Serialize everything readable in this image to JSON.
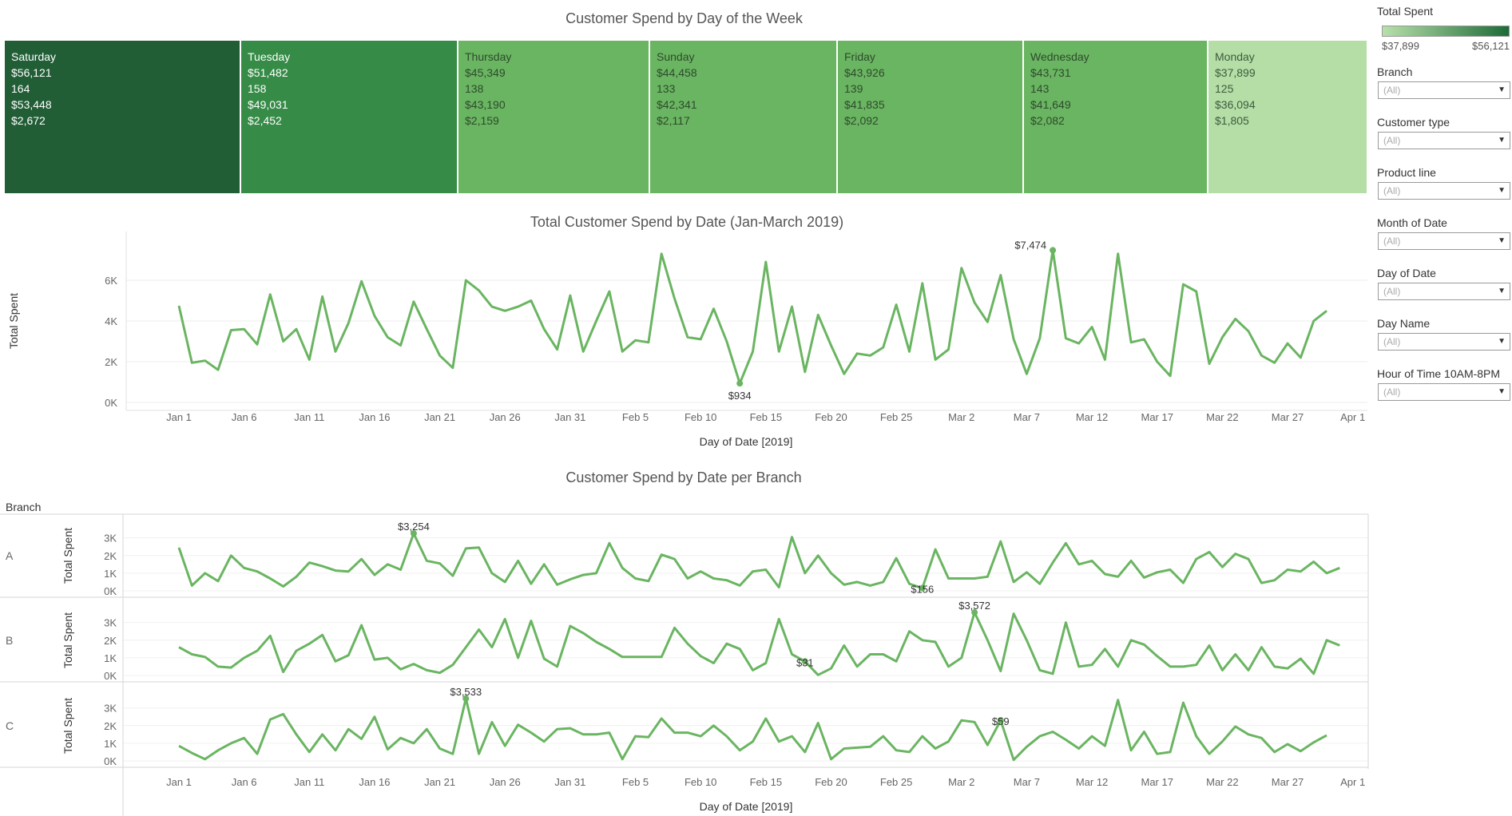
{
  "treemap": {
    "title": "Customer Spend by Day of the Week",
    "tiles": [
      {
        "day": "Saturday",
        "total": "$56,121",
        "count": "164",
        "v3": "$53,448",
        "v4": "$2,672",
        "color": "#215e36",
        "text": "#ffffff"
      },
      {
        "day": "Tuesday",
        "total": "$51,482",
        "count": "158",
        "v3": "$49,031",
        "v4": "$2,452",
        "color": "#368b47",
        "text": "#ffffff"
      },
      {
        "day": "Thursday",
        "total": "$45,349",
        "count": "138",
        "v3": "$43,190",
        "v4": "$2,159",
        "color": "#6ab561",
        "text": "#2d4a2d"
      },
      {
        "day": "Sunday",
        "total": "$44,458",
        "count": "133",
        "v3": "$42,341",
        "v4": "$2,117",
        "color": "#6ab561",
        "text": "#2d4a2d"
      },
      {
        "day": "Friday",
        "total": "$43,926",
        "count": "139",
        "v3": "$41,835",
        "v4": "$2,092",
        "color": "#6ab561",
        "text": "#2d4a2d"
      },
      {
        "day": "Wednesday",
        "total": "$43,731",
        "count": "143",
        "v3": "$41,649",
        "v4": "$2,082",
        "color": "#6ab561",
        "text": "#2d4a2d"
      },
      {
        "day": "Monday",
        "total": "$37,899",
        "count": "125",
        "v3": "$36,094",
        "v4": "$1,805",
        "color": "#b4dea6",
        "text": "#3d5a3d"
      }
    ]
  },
  "legend": {
    "title": "Total Spent",
    "min": "$37,899",
    "max": "$56,121"
  },
  "filters": [
    {
      "label": "Branch",
      "value": "(All)"
    },
    {
      "label": "Customer type",
      "value": "(All)"
    },
    {
      "label": "Product line",
      "value": "(All)"
    },
    {
      "label": "Month of Date",
      "value": "(All)"
    },
    {
      "label": "Day of Date",
      "value": "(All)"
    },
    {
      "label": "Day Name",
      "value": "(All)"
    },
    {
      "label": "Hour of Time 10AM-8PM",
      "value": "(All)"
    }
  ],
  "line_chart": {
    "title": "Total Customer Spend by Date (Jan-March 2019)",
    "ylabel": "Total Spent",
    "xlabel": "Day of Date [2019]",
    "line_color": "#6ab561"
  },
  "branch_chart": {
    "title": "Customer Spend by Date per Branch",
    "facet_header": "Branch",
    "ylabel": "Total Spent",
    "xlabel": "Day of Date [2019]"
  },
  "chart_data": [
    {
      "type": "line",
      "title": "Total Customer Spend by Date (Jan-March 2019)",
      "xlabel": "Day of Date [2019]",
      "ylabel": "Total Spent",
      "x_ticks": [
        "Jan 1",
        "Jan 6",
        "Jan 11",
        "Jan 16",
        "Jan 21",
        "Jan 26",
        "Jan 31",
        "Feb 5",
        "Feb 10",
        "Feb 15",
        "Feb 20",
        "Feb 25",
        "Mar 2",
        "Mar 7",
        "Mar 12",
        "Mar 17",
        "Mar 22",
        "Mar 27",
        "Apr 1"
      ],
      "y_ticks": [
        "0K",
        "2K",
        "4K",
        "6K"
      ],
      "ylim": [
        0,
        8000
      ],
      "annotations": [
        {
          "label": "$7,474",
          "day": 67
        },
        {
          "label": "$934",
          "day": 43
        }
      ],
      "values": [
        4750,
        1950,
        2050,
        1600,
        3550,
        3600,
        2850,
        5300,
        3000,
        3600,
        2100,
        5200,
        2500,
        3900,
        5950,
        4250,
        3200,
        2800,
        4950,
        3600,
        2300,
        1700,
        6000,
        5500,
        4700,
        4500,
        4700,
        5000,
        3600,
        2600,
        5250,
        2500,
        4000,
        5450,
        2500,
        3050,
        2950,
        7300,
        5100,
        3200,
        3100,
        4600,
        3000,
        934,
        2500,
        6900,
        2500,
        4700,
        1500,
        4300,
        2800,
        1400,
        2400,
        2300,
        2700,
        4800,
        2500,
        5850,
        2100,
        2600,
        6600,
        4900,
        3950,
        6250,
        3100,
        1400,
        3150,
        7474,
        3150,
        2900,
        3700,
        2100,
        7300,
        2950,
        3100,
        2000,
        1300,
        5800,
        5450,
        1900,
        3200,
        4100,
        3500,
        2300,
        1950,
        2900,
        2200,
        4000,
        4500
      ]
    },
    {
      "type": "line",
      "title": "Customer Spend by Date per Branch",
      "xlabel": "Day of Date [2019]",
      "ylabel": "Total Spent",
      "x_ticks": [
        "Jan 1",
        "Jan 6",
        "Jan 11",
        "Jan 16",
        "Jan 21",
        "Jan 26",
        "Jan 31",
        "Feb 5",
        "Feb 10",
        "Feb 15",
        "Feb 20",
        "Feb 25",
        "Mar 2",
        "Mar 7",
        "Mar 12",
        "Mar 17",
        "Mar 22",
        "Mar 27",
        "Apr 1"
      ],
      "y_ticks": [
        "0K",
        "1K",
        "2K",
        "3K"
      ],
      "ylim": [
        0,
        3800
      ],
      "series": [
        {
          "name": "A",
          "annotations": [
            {
              "label": "$3,254",
              "day": 18
            },
            {
              "label": "$156",
              "day": 57
            }
          ],
          "values": [
            2450,
            300,
            1000,
            550,
            2000,
            1300,
            1100,
            700,
            250,
            800,
            1600,
            1400,
            1150,
            1100,
            1800,
            900,
            1500,
            1200,
            3254,
            1700,
            1550,
            850,
            2400,
            2450,
            1000,
            500,
            1700,
            400,
            1500,
            350,
            650,
            900,
            1000,
            2700,
            1300,
            700,
            550,
            2050,
            1800,
            700,
            1100,
            700,
            600,
            300,
            1100,
            1200,
            200,
            3050,
            1000,
            2000,
            1000,
            350,
            500,
            300,
            500,
            1850,
            400,
            156,
            2350,
            700,
            700,
            700,
            800,
            2800,
            500,
            1050,
            400,
            1600,
            2700,
            1500,
            1700,
            950,
            800,
            1700,
            750,
            1050,
            1200,
            450,
            1800,
            2200,
            1350,
            2100,
            1800,
            450,
            600,
            1200,
            1100,
            1650,
            1000,
            1300
          ]
        },
        {
          "name": "B",
          "annotations": [
            {
              "label": "$3,572",
              "day": 61
            },
            {
              "label": "$31",
              "day": 48
            }
          ],
          "values": [
            1600,
            1200,
            1050,
            500,
            450,
            1000,
            1400,
            2250,
            200,
            1400,
            1800,
            2300,
            800,
            1150,
            2850,
            900,
            1000,
            350,
            650,
            300,
            150,
            600,
            1600,
            2600,
            1600,
            3200,
            1000,
            3100,
            950,
            500,
            2800,
            2400,
            1900,
            1500,
            1050,
            1050,
            1050,
            1050,
            2700,
            1800,
            1100,
            700,
            1800,
            1500,
            300,
            700,
            3200,
            1200,
            800,
            31,
            400,
            1700,
            500,
            1200,
            1200,
            800,
            2500,
            2000,
            1900,
            500,
            1000,
            3572,
            2000,
            250,
            3500,
            2000,
            300,
            100,
            3000,
            500,
            600,
            1500,
            500,
            2000,
            1750,
            1100,
            500,
            500,
            600,
            1700,
            300,
            1200,
            300,
            1600,
            500,
            400,
            950,
            100,
            2000,
            1700
          ]
        },
        {
          "name": "C",
          "annotations": [
            {
              "label": "$3,533",
              "day": 22
            },
            {
              "label": "$59",
              "day": 63
            }
          ],
          "values": [
            850,
            450,
            100,
            600,
            1000,
            1300,
            400,
            2350,
            2650,
            1500,
            500,
            1500,
            600,
            1800,
            1250,
            2500,
            650,
            1300,
            1000,
            1800,
            700,
            400,
            3533,
            400,
            2200,
            850,
            2050,
            1600,
            1100,
            1800,
            1850,
            1500,
            1500,
            1600,
            100,
            1400,
            1350,
            2400,
            1600,
            1600,
            1400,
            2000,
            1400,
            600,
            1100,
            2400,
            1100,
            1400,
            500,
            2150,
            100,
            700,
            750,
            800,
            1400,
            600,
            500,
            1400,
            700,
            1100,
            2300,
            2200,
            900,
            2300,
            59,
            800,
            1400,
            1650,
            1200,
            700,
            1400,
            850,
            3450,
            600,
            1650,
            400,
            500,
            3300,
            1400,
            400,
            1100,
            1950,
            1500,
            1300,
            500,
            950,
            550,
            1050,
            1450
          ]
        }
      ]
    }
  ]
}
